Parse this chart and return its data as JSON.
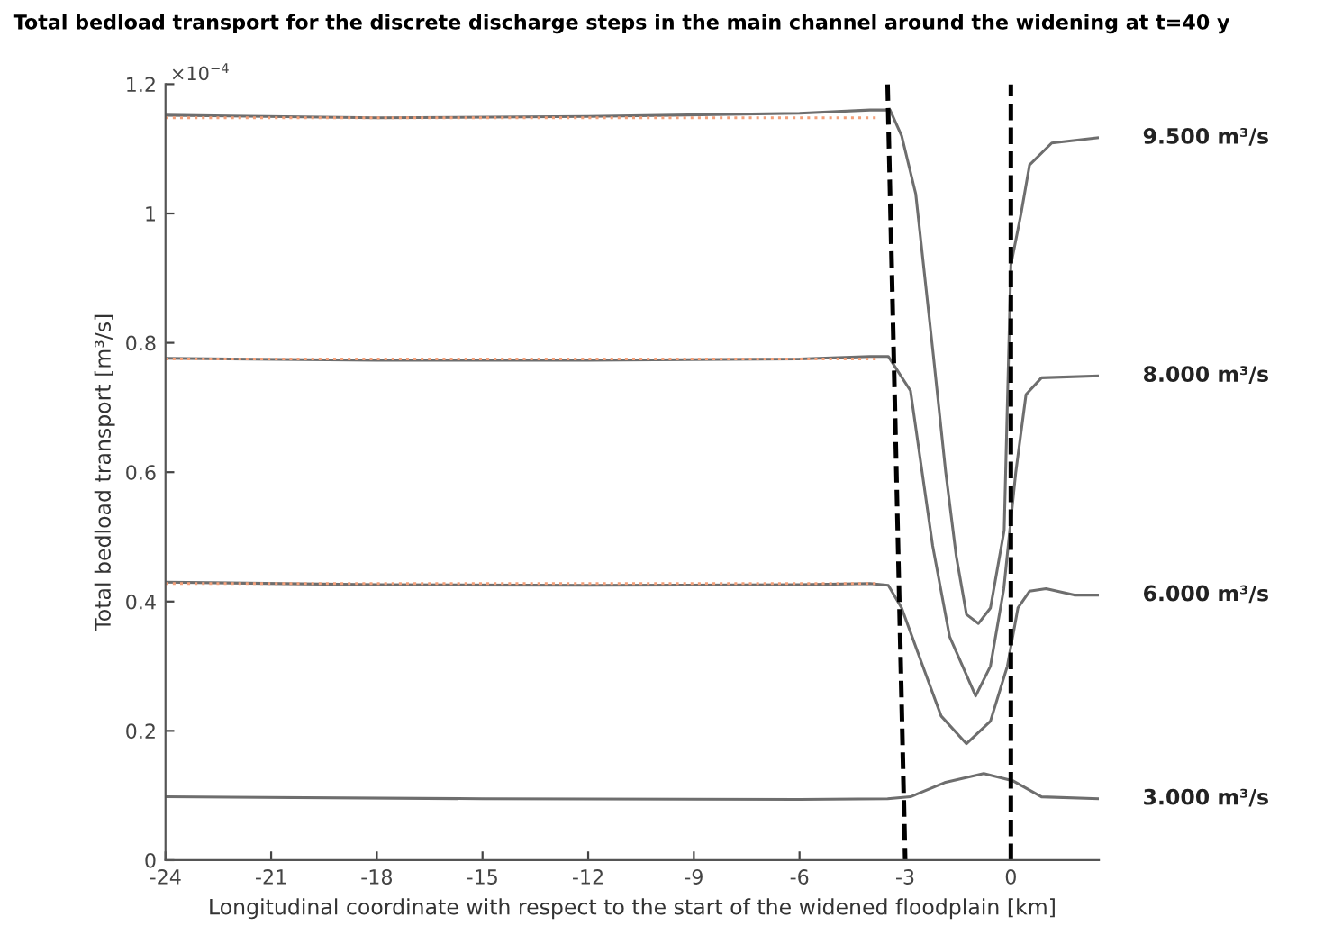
{
  "chart_data": {
    "type": "line",
    "title": "Total bedload transport for the discrete discharge steps in the main channel around the widening at t=40 y",
    "xlabel": "Longitudinal coordinate with respect to the start of the widened floodplain [km]",
    "ylabel": "Total bedload transport [m³/s]",
    "annotations": [
      "×10$^{−4}$"
    ],
    "xlim": [
      -24,
      2.5
    ],
    "xticks": [
      -24,
      -21,
      -18,
      -15,
      -12,
      -9,
      -6,
      -3,
      0
    ],
    "ylim": [
      0,
      1.2
    ],
    "yticks": [
      0,
      0.2,
      0.4,
      0.6,
      0.8,
      1,
      1.2
    ],
    "grid": false,
    "legend": false,
    "marker": "none",
    "line_style": "solid",
    "series": [
      {
        "name": "9.500 m³/s",
        "color": "#6e6e6e",
        "x": [
          -24,
          -18,
          -12,
          -6,
          -4,
          -3.43,
          -3.1,
          -2.7,
          -2.2,
          -1.85,
          -1.55,
          -1.26,
          -0.92,
          -0.58,
          -0.19,
          0,
          0.29,
          0.53,
          1.16,
          2.46
        ],
        "values": [
          1.152,
          1.148,
          1.15,
          1.155,
          1.16,
          1.16,
          1.12,
          1.03,
          0.78,
          0.6,
          0.47,
          0.38,
          0.366,
          0.39,
          0.51,
          0.92,
          1.0,
          1.075,
          1.109,
          1.117
        ]
      },
      {
        "name": "8.000 m³/s",
        "color": "#6e6e6e",
        "x": [
          -24,
          -18,
          -12,
          -6,
          -4,
          -3.48,
          -2.85,
          -2.22,
          -1.74,
          -1.0,
          -0.58,
          -0.2,
          0.14,
          0.43,
          0.87,
          2.46
        ],
        "values": [
          0.776,
          0.773,
          0.773,
          0.775,
          0.779,
          0.779,
          0.726,
          0.486,
          0.346,
          0.254,
          0.3,
          0.42,
          0.6,
          0.72,
          0.746,
          0.749
        ]
      },
      {
        "name": "6.000 m³/s",
        "color": "#6e6e6e",
        "x": [
          -24,
          -18,
          -12,
          -6,
          -4,
          -3.48,
          -3.1,
          -2.5,
          -1.98,
          -1.26,
          -0.58,
          -0.1,
          0.2,
          0.53,
          1.0,
          1.8,
          2.46
        ],
        "values": [
          0.43,
          0.426,
          0.425,
          0.426,
          0.428,
          0.425,
          0.39,
          0.3,
          0.223,
          0.18,
          0.215,
          0.3,
          0.39,
          0.416,
          0.42,
          0.41,
          0.41
        ]
      },
      {
        "name": "3.000 m³/s",
        "color": "#6e6e6e",
        "x": [
          -24,
          -15,
          -6,
          -3.5,
          -2.85,
          -1.88,
          -0.77,
          0.05,
          0.87,
          2.46
        ],
        "values": [
          0.098,
          0.095,
          0.094,
          0.095,
          0.098,
          0.12,
          0.134,
          0.123,
          0.098,
          0.095
        ]
      },
      {
        "color": "#f4a07a",
        "line_style": "dotted",
        "x": [
          -24,
          -3.8
        ],
        "values": [
          1.148,
          1.148
        ]
      },
      {
        "color": "#f4a07a",
        "line_style": "dotted",
        "x": [
          -24,
          -3.8
        ],
        "values": [
          0.775,
          0.775
        ]
      },
      {
        "color": "#f4a07a",
        "line_style": "dotted",
        "x": [
          -24,
          -3.8
        ],
        "values": [
          0.428,
          0.428
        ]
      },
      {
        "color": "#000000",
        "line_style": "dashed",
        "x": [
          -3.5,
          -3.0
        ],
        "values": [
          1.2,
          0
        ]
      }
    ],
    "ref_lines": [
      {
        "axis": "x",
        "value": 0,
        "color": "#000000",
        "line_style": "dashed"
      }
    ]
  }
}
